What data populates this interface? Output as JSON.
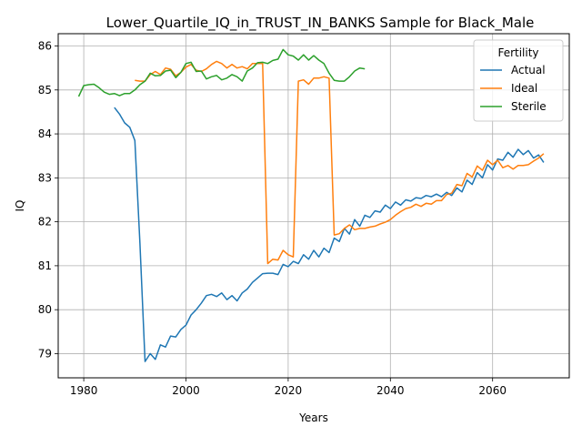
{
  "chart_data": {
    "type": "line",
    "title": "Lower_Quartile_IQ_in_TRUST_IN_BANKS Sample for Black_Male",
    "xlabel": "Years",
    "ylabel": "IQ",
    "xlim": [
      1975,
      2075
    ],
    "ylim": [
      78.45,
      86.28
    ],
    "xticks": [
      1980,
      2000,
      2020,
      2040,
      2060
    ],
    "yticks": [
      79,
      80,
      81,
      82,
      83,
      84,
      85,
      86
    ],
    "grid": true,
    "legend": {
      "title": "Fertility",
      "position": "top-right"
    },
    "series": [
      {
        "name": "Actual",
        "color": "#1f77b4",
        "x": [
          1986,
          1987,
          1988,
          1989,
          1990,
          1991,
          1992,
          1993,
          1994,
          1995,
          1996,
          1997,
          1998,
          1999,
          2000,
          2001,
          2002,
          2003,
          2004,
          2005,
          2006,
          2007,
          2008,
          2009,
          2010,
          2011,
          2012,
          2013,
          2014,
          2015,
          2016,
          2017,
          2018,
          2019,
          2020,
          2021,
          2022,
          2023,
          2024,
          2025,
          2026,
          2027,
          2028,
          2029,
          2030,
          2031,
          2032,
          2033,
          2034,
          2035,
          2036,
          2037,
          2038,
          2039,
          2040,
          2041,
          2042,
          2043,
          2044,
          2045,
          2046,
          2047,
          2048,
          2049,
          2050,
          2051,
          2052,
          2053,
          2054,
          2055,
          2056,
          2057,
          2058,
          2059,
          2060,
          2061,
          2062,
          2063,
          2064,
          2065,
          2066,
          2067,
          2068,
          2069,
          2070
        ],
        "values": [
          84.6,
          84.45,
          84.25,
          84.15,
          83.85,
          81.5,
          78.82,
          79.0,
          78.87,
          79.2,
          79.15,
          79.4,
          79.38,
          79.55,
          79.65,
          79.88,
          80.0,
          80.15,
          80.32,
          80.35,
          80.3,
          80.38,
          80.23,
          80.32,
          80.2,
          80.38,
          80.47,
          80.62,
          80.72,
          80.82,
          80.83,
          80.83,
          80.8,
          81.03,
          80.98,
          81.1,
          81.05,
          81.25,
          81.15,
          81.35,
          81.2,
          81.4,
          81.3,
          81.63,
          81.55,
          81.85,
          81.72,
          82.05,
          81.9,
          82.15,
          82.1,
          82.25,
          82.22,
          82.38,
          82.3,
          82.45,
          82.38,
          82.5,
          82.47,
          82.55,
          82.53,
          82.6,
          82.57,
          82.63,
          82.57,
          82.67,
          82.6,
          82.77,
          82.68,
          82.95,
          82.85,
          83.12,
          83.0,
          83.3,
          83.18,
          83.43,
          83.4,
          83.58,
          83.47,
          83.65,
          83.53,
          83.62,
          83.45,
          83.52,
          83.35
        ]
      },
      {
        "name": "Ideal",
        "color": "#ff7f0e",
        "x": [
          1990,
          1991,
          1992,
          1993,
          1994,
          1995,
          1996,
          1997,
          1998,
          1999,
          2000,
          2001,
          2002,
          2003,
          2004,
          2005,
          2006,
          2007,
          2008,
          2009,
          2010,
          2011,
          2012,
          2013,
          2014,
          2015,
          2016,
          2017,
          2018,
          2019,
          2020,
          2021,
          2022,
          2023,
          2024,
          2025,
          2026,
          2027,
          2028,
          2029,
          2030,
          2031,
          2032,
          2033,
          2034,
          2035,
          2036,
          2037,
          2038,
          2039,
          2040,
          2041,
          2042,
          2043,
          2044,
          2045,
          2046,
          2047,
          2048,
          2049,
          2050,
          2051,
          2052,
          2053,
          2054,
          2055,
          2056,
          2057,
          2058,
          2059,
          2060,
          2061,
          2062,
          2063,
          2064,
          2065,
          2066,
          2067,
          2068,
          2069,
          2070
        ],
        "values": [
          85.22,
          85.2,
          85.2,
          85.35,
          85.42,
          85.35,
          85.5,
          85.47,
          85.32,
          85.4,
          85.52,
          85.58,
          85.45,
          85.42,
          85.48,
          85.58,
          85.65,
          85.6,
          85.5,
          85.58,
          85.5,
          85.53,
          85.48,
          85.6,
          85.6,
          85.6,
          81.05,
          81.15,
          81.13,
          81.35,
          81.25,
          81.2,
          85.2,
          85.23,
          85.13,
          85.27,
          85.27,
          85.3,
          85.27,
          81.7,
          81.73,
          81.85,
          81.93,
          81.82,
          81.85,
          81.85,
          81.88,
          81.9,
          81.95,
          81.99,
          82.05,
          82.15,
          82.23,
          82.3,
          82.33,
          82.4,
          82.35,
          82.42,
          82.4,
          82.48,
          82.48,
          82.62,
          82.65,
          82.85,
          82.82,
          83.1,
          83.02,
          83.27,
          83.17,
          83.4,
          83.3,
          83.4,
          83.23,
          83.28,
          83.2,
          83.28,
          83.28,
          83.3,
          83.38,
          83.45,
          83.55
        ]
      },
      {
        "name": "Sterile",
        "color": "#2ca02c",
        "x": [
          1979,
          1980,
          1981,
          1982,
          1983,
          1984,
          1985,
          1986,
          1987,
          1988,
          1989,
          1990,
          1991,
          1992,
          1993,
          1994,
          1995,
          1996,
          1997,
          1998,
          1999,
          2000,
          2001,
          2002,
          2003,
          2004,
          2005,
          2006,
          2007,
          2008,
          2009,
          2010,
          2011,
          2012,
          2013,
          2014,
          2015,
          2016,
          2017,
          2018,
          2019,
          2020,
          2021,
          2022,
          2023,
          2024,
          2025,
          2026,
          2027,
          2028,
          2029,
          2030,
          2031,
          2032,
          2033,
          2034,
          2035
        ],
        "values": [
          84.85,
          85.1,
          85.12,
          85.13,
          85.05,
          84.95,
          84.9,
          84.92,
          84.87,
          84.92,
          84.92,
          85.0,
          85.12,
          85.2,
          85.38,
          85.32,
          85.33,
          85.43,
          85.45,
          85.28,
          85.4,
          85.6,
          85.63,
          85.42,
          85.43,
          85.25,
          85.3,
          85.33,
          85.23,
          85.27,
          85.35,
          85.3,
          85.2,
          85.43,
          85.5,
          85.62,
          85.63,
          85.6,
          85.67,
          85.7,
          85.92,
          85.8,
          85.77,
          85.68,
          85.8,
          85.68,
          85.78,
          85.68,
          85.6,
          85.38,
          85.22,
          85.2,
          85.2,
          85.3,
          85.43,
          85.5,
          85.48
        ]
      }
    ]
  }
}
